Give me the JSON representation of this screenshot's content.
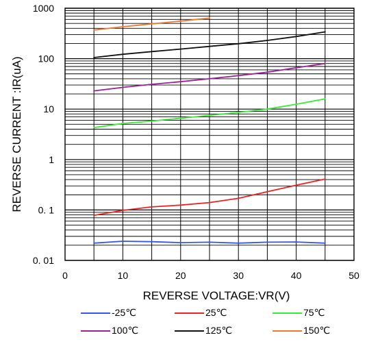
{
  "chart_data": {
    "type": "line",
    "title": "",
    "xlabel": "REVERSE VOLTAGE:VR(V)",
    "ylabel": "REVERSE CURRENT :IR(uA)",
    "xlim": [
      0,
      50
    ],
    "ylim": [
      0.01,
      1000
    ],
    "y_scale": "log",
    "grid": true,
    "legend_position": "bottom",
    "x_ticks": [
      0,
      10,
      20,
      30,
      40,
      50
    ],
    "x_tick_labels": [
      "0",
      "10",
      "20",
      "30",
      "40",
      "50"
    ],
    "y_ticks": [
      0.01,
      0.1,
      1,
      10,
      100,
      1000
    ],
    "y_tick_labels": [
      "0. 01",
      "0. 1",
      "1",
      "10",
      "100",
      "1000"
    ],
    "series": [
      {
        "name": "-25℃",
        "color": "#3355ee",
        "x": [
          5,
          10,
          15,
          20,
          25,
          30,
          35,
          40,
          45
        ],
        "y": [
          0.022,
          0.024,
          0.0235,
          0.0225,
          0.023,
          0.022,
          0.023,
          0.0232,
          0.022
        ]
      },
      {
        "name": "25℃",
        "color": "#ee2222",
        "x": [
          5,
          10,
          15,
          20,
          25,
          30,
          35,
          40,
          45
        ],
        "y": [
          0.078,
          0.098,
          0.115,
          0.125,
          0.14,
          0.17,
          0.23,
          0.31,
          0.41
        ]
      },
      {
        "name": "75℃",
        "color": "#33ee33",
        "x": [
          5,
          10,
          15,
          20,
          25,
          30,
          35,
          40,
          45
        ],
        "y": [
          4.3,
          5.2,
          5.8,
          6.6,
          7.5,
          8.6,
          10,
          12.5,
          16
        ]
      },
      {
        "name": "100℃",
        "color": "#992299",
        "x": [
          5,
          10,
          15,
          20,
          25,
          30,
          35,
          40,
          45
        ],
        "y": [
          23,
          27,
          31,
          35,
          40,
          46,
          54,
          66,
          80
        ]
      },
      {
        "name": "125℃",
        "color": "#111111",
        "x": [
          5,
          10,
          15,
          20,
          25,
          30,
          35,
          40,
          45
        ],
        "y": [
          105,
          122,
          138,
          155,
          175,
          198,
          230,
          275,
          340
        ]
      },
      {
        "name": "150℃",
        "color": "#ee7733",
        "x": [
          5,
          10,
          15,
          20,
          25
        ],
        "y": [
          370,
          430,
          490,
          555,
          640
        ]
      }
    ]
  }
}
